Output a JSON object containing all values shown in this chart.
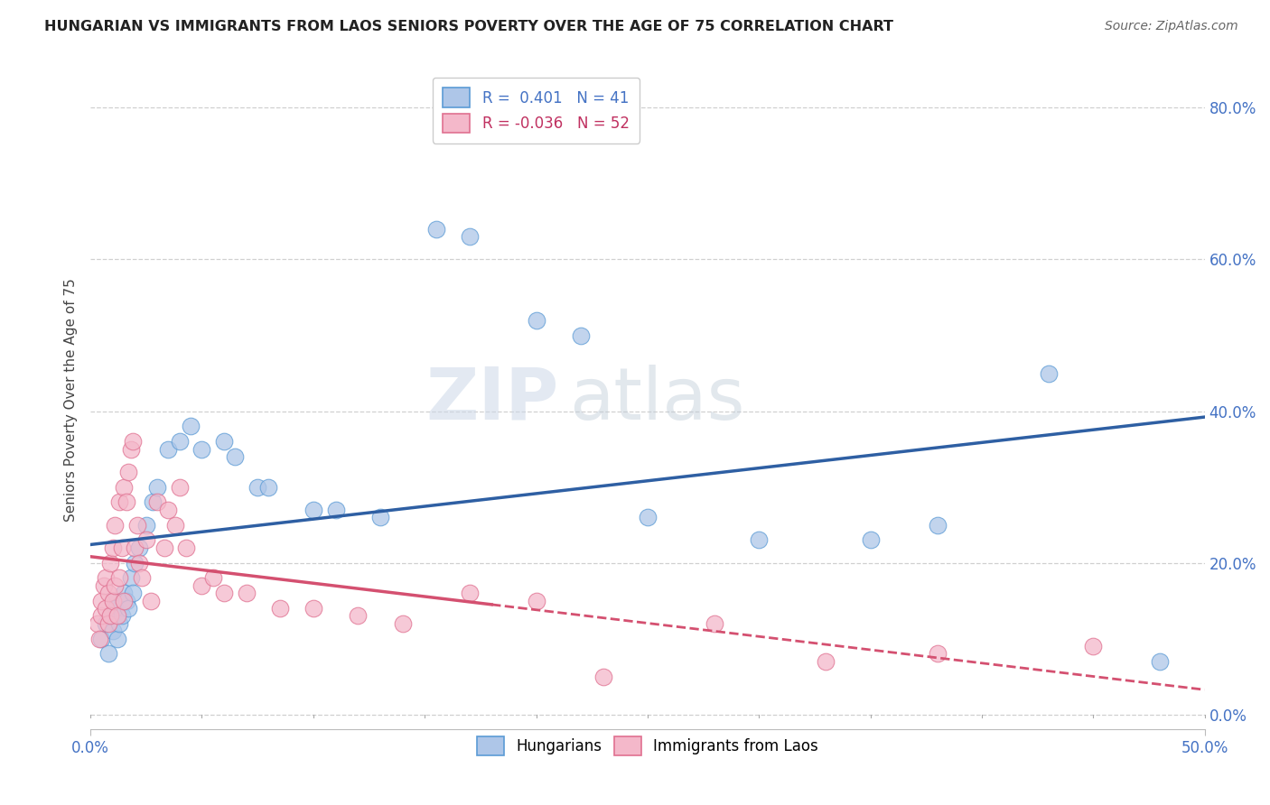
{
  "title": "HUNGARIAN VS IMMIGRANTS FROM LAOS SENIORS POVERTY OVER THE AGE OF 75 CORRELATION CHART",
  "source": "Source: ZipAtlas.com",
  "ylabel": "Seniors Poverty Over the Age of 75",
  "xlim": [
    0.0,
    0.5
  ],
  "ylim": [
    -0.02,
    0.85
  ],
  "xtick_positions": [
    0.0,
    0.5
  ],
  "xtick_labels": [
    "0.0%",
    "50.0%"
  ],
  "ytick_positions": [
    0.0,
    0.2,
    0.4,
    0.6,
    0.8
  ],
  "ytick_labels": [
    "0.0%",
    "20.0%",
    "40.0%",
    "60.0%",
    "80.0%"
  ],
  "hungarian_color": "#aec6e8",
  "laos_color": "#f4b8ca",
  "hungarian_edge_color": "#5b9bd5",
  "laos_edge_color": "#e07090",
  "hungarian_line_color": "#2e5fa3",
  "laos_line_color": "#d45070",
  "R_hungarian": 0.401,
  "N_hungarian": 41,
  "R_laos": -0.036,
  "N_laos": 52,
  "watermark_zip": "ZIP",
  "watermark_atlas": "atlas",
  "hungarian_scatter_x": [
    0.005,
    0.007,
    0.008,
    0.009,
    0.01,
    0.01,
    0.011,
    0.012,
    0.013,
    0.014,
    0.015,
    0.016,
    0.017,
    0.018,
    0.019,
    0.02,
    0.022,
    0.025,
    0.028,
    0.03,
    0.035,
    0.04,
    0.045,
    0.05,
    0.06,
    0.065,
    0.075,
    0.08,
    0.1,
    0.11,
    0.13,
    0.155,
    0.17,
    0.2,
    0.22,
    0.25,
    0.3,
    0.35,
    0.38,
    0.43,
    0.48
  ],
  "hungarian_scatter_y": [
    0.1,
    0.12,
    0.08,
    0.13,
    0.15,
    0.11,
    0.14,
    0.1,
    0.12,
    0.13,
    0.16,
    0.15,
    0.14,
    0.18,
    0.16,
    0.2,
    0.22,
    0.25,
    0.28,
    0.3,
    0.35,
    0.36,
    0.38,
    0.35,
    0.36,
    0.34,
    0.3,
    0.3,
    0.27,
    0.27,
    0.26,
    0.64,
    0.63,
    0.52,
    0.5,
    0.26,
    0.23,
    0.23,
    0.25,
    0.45,
    0.07
  ],
  "laos_scatter_x": [
    0.003,
    0.004,
    0.005,
    0.005,
    0.006,
    0.007,
    0.007,
    0.008,
    0.008,
    0.009,
    0.009,
    0.01,
    0.01,
    0.011,
    0.011,
    0.012,
    0.013,
    0.013,
    0.014,
    0.015,
    0.015,
    0.016,
    0.017,
    0.018,
    0.019,
    0.02,
    0.021,
    0.022,
    0.023,
    0.025,
    0.027,
    0.03,
    0.033,
    0.035,
    0.038,
    0.04,
    0.043,
    0.05,
    0.055,
    0.06,
    0.07,
    0.085,
    0.1,
    0.12,
    0.14,
    0.17,
    0.2,
    0.23,
    0.28,
    0.33,
    0.38,
    0.45
  ],
  "laos_scatter_y": [
    0.12,
    0.1,
    0.13,
    0.15,
    0.17,
    0.14,
    0.18,
    0.12,
    0.16,
    0.13,
    0.2,
    0.15,
    0.22,
    0.17,
    0.25,
    0.13,
    0.28,
    0.18,
    0.22,
    0.15,
    0.3,
    0.28,
    0.32,
    0.35,
    0.36,
    0.22,
    0.25,
    0.2,
    0.18,
    0.23,
    0.15,
    0.28,
    0.22,
    0.27,
    0.25,
    0.3,
    0.22,
    0.17,
    0.18,
    0.16,
    0.16,
    0.14,
    0.14,
    0.13,
    0.12,
    0.16,
    0.15,
    0.05,
    0.12,
    0.07,
    0.08,
    0.09
  ],
  "grid_color": "#d0d0d0",
  "grid_yticks": [
    0.0,
    0.2,
    0.4,
    0.6,
    0.8
  ]
}
